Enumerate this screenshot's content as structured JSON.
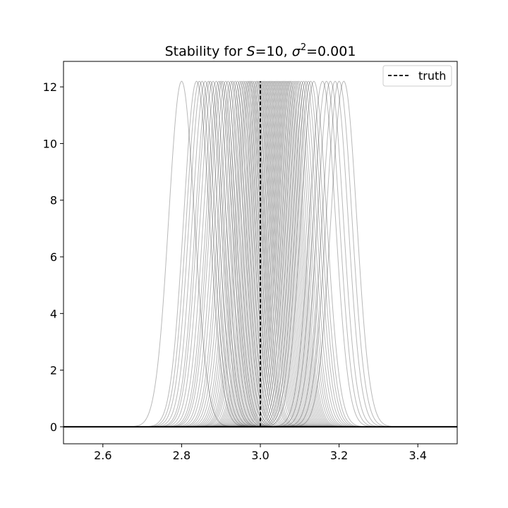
{
  "chart_data": {
    "type": "line",
    "title": {
      "prefix": "Stability for ",
      "s_symbol": "S",
      "s_value": "=10, ",
      "sigma_symbol": "σ",
      "sigma_exponent": "2",
      "sigma_value": "=0.001"
    },
    "xlabel": "",
    "ylabel": "",
    "xlim": [
      2.5,
      3.5
    ],
    "ylim": [
      -0.6,
      12.9
    ],
    "x_ticks": [
      2.6,
      2.8,
      3.0,
      3.2,
      3.4
    ],
    "x_tick_labels": [
      "2.6",
      "2.8",
      "3.0",
      "3.2",
      "3.4"
    ],
    "y_ticks": [
      0,
      2,
      4,
      6,
      8,
      10,
      12
    ],
    "y_tick_labels": [
      "0",
      "2",
      "4",
      "6",
      "8",
      "10",
      "12"
    ],
    "grid": false,
    "legend": {
      "placement": "top-right",
      "entries": [
        "truth"
      ]
    },
    "density_peak": 12.2,
    "density_sigma": 0.0327,
    "density_centers": [
      2.8,
      2.838,
      2.845,
      2.852,
      2.86,
      2.868,
      2.873,
      2.88,
      2.888,
      2.895,
      2.9,
      2.905,
      2.912,
      2.918,
      2.925,
      2.93,
      2.936,
      2.942,
      2.948,
      2.953,
      2.958,
      2.963,
      2.968,
      2.972,
      2.976,
      2.98,
      2.985,
      2.99,
      2.994,
      2.998,
      3.002,
      3.006,
      3.01,
      3.014,
      3.018,
      3.022,
      3.026,
      3.03,
      3.034,
      3.038,
      3.042,
      3.046,
      3.05,
      3.054,
      3.058,
      3.062,
      3.066,
      3.07,
      3.074,
      3.078,
      3.083,
      3.088,
      3.093,
      3.098,
      3.104,
      3.11,
      3.116,
      3.122,
      3.128,
      3.136,
      3.158,
      3.168,
      3.178,
      3.19,
      3.2,
      3.212
    ],
    "truth": {
      "x": 3.0,
      "y_range": [
        0,
        12.2
      ],
      "label": "truth",
      "style": "dashed"
    },
    "zero_line": {
      "y": 0
    },
    "colors": {
      "density": "#000000",
      "truth": "#000000",
      "axes": "#000000"
    }
  }
}
